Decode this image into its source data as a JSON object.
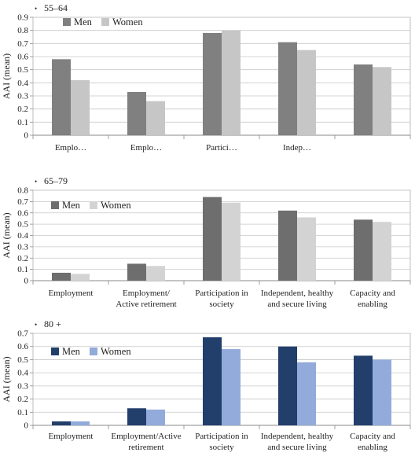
{
  "chart_data": [
    {
      "type": "bar",
      "title": "55–64",
      "bullet": "•",
      "ylabel": "AAI (mean)",
      "xlabel": "",
      "ylim": [
        0,
        0.9
      ],
      "yticks": [
        "0",
        "0.1",
        "0.2",
        "0.3",
        "0.4",
        "0.5",
        "0.6",
        "0.7",
        "0.8",
        "0.9"
      ],
      "grid": true,
      "legend": "top-left",
      "categories": [
        [
          "Emplo…"
        ],
        [
          "Emplo…"
        ],
        [
          "Partici…"
        ],
        [
          "Indep…"
        ],
        [
          ""
        ]
      ],
      "series": [
        {
          "name": "Men",
          "color": "#808080",
          "values": [
            0.58,
            0.33,
            0.78,
            0.71,
            0.54
          ]
        },
        {
          "name": "Women",
          "color": "#c6c6c6",
          "values": [
            0.42,
            0.26,
            0.8,
            0.65,
            0.52
          ]
        }
      ]
    },
    {
      "type": "bar",
      "title": "65–79",
      "bullet": "•",
      "ylabel": "AAI (mean)",
      "xlabel": "",
      "ylim": [
        0,
        0.8
      ],
      "yticks": [
        "0",
        "0.1",
        "0.2",
        "0.3",
        "0.4",
        "0.5",
        "0.6",
        "0.7",
        "0.8"
      ],
      "grid": true,
      "legend": "top-left",
      "categories": [
        [
          "Employment"
        ],
        [
          "Employment/",
          "Active retirement"
        ],
        [
          "Participation in",
          "society"
        ],
        [
          "Independent, healthy",
          "and secure living"
        ],
        [
          "Capacity and",
          "enabling"
        ]
      ],
      "series": [
        {
          "name": "Men",
          "color": "#6e6e6e",
          "values": [
            0.07,
            0.15,
            0.74,
            0.62,
            0.54
          ]
        },
        {
          "name": "Women",
          "color": "#d3d3d3",
          "values": [
            0.06,
            0.13,
            0.69,
            0.56,
            0.52
          ]
        }
      ]
    },
    {
      "type": "bar",
      "title": "80 +",
      "bullet": "•",
      "ylabel": "AAI (mean)",
      "xlabel": "",
      "ylim": [
        0,
        0.7
      ],
      "yticks": [
        "0",
        "0.1",
        "0.2",
        "0.3",
        "0.4",
        "0.5",
        "0.6",
        "0.7"
      ],
      "grid": true,
      "legend": "top-left",
      "categories": [
        [
          "Employment"
        ],
        [
          "Employment/Active",
          "retirement"
        ],
        [
          "Participation in",
          "society"
        ],
        [
          "Independent, healthy",
          "and secure living"
        ],
        [
          "Capacity and",
          "enabling"
        ]
      ],
      "series": [
        {
          "name": "Men",
          "color": "#223f6c",
          "values": [
            0.03,
            0.13,
            0.67,
            0.6,
            0.53
          ]
        },
        {
          "name": "Women",
          "color": "#92abda",
          "values": [
            0.03,
            0.12,
            0.58,
            0.48,
            0.5
          ]
        }
      ]
    }
  ]
}
